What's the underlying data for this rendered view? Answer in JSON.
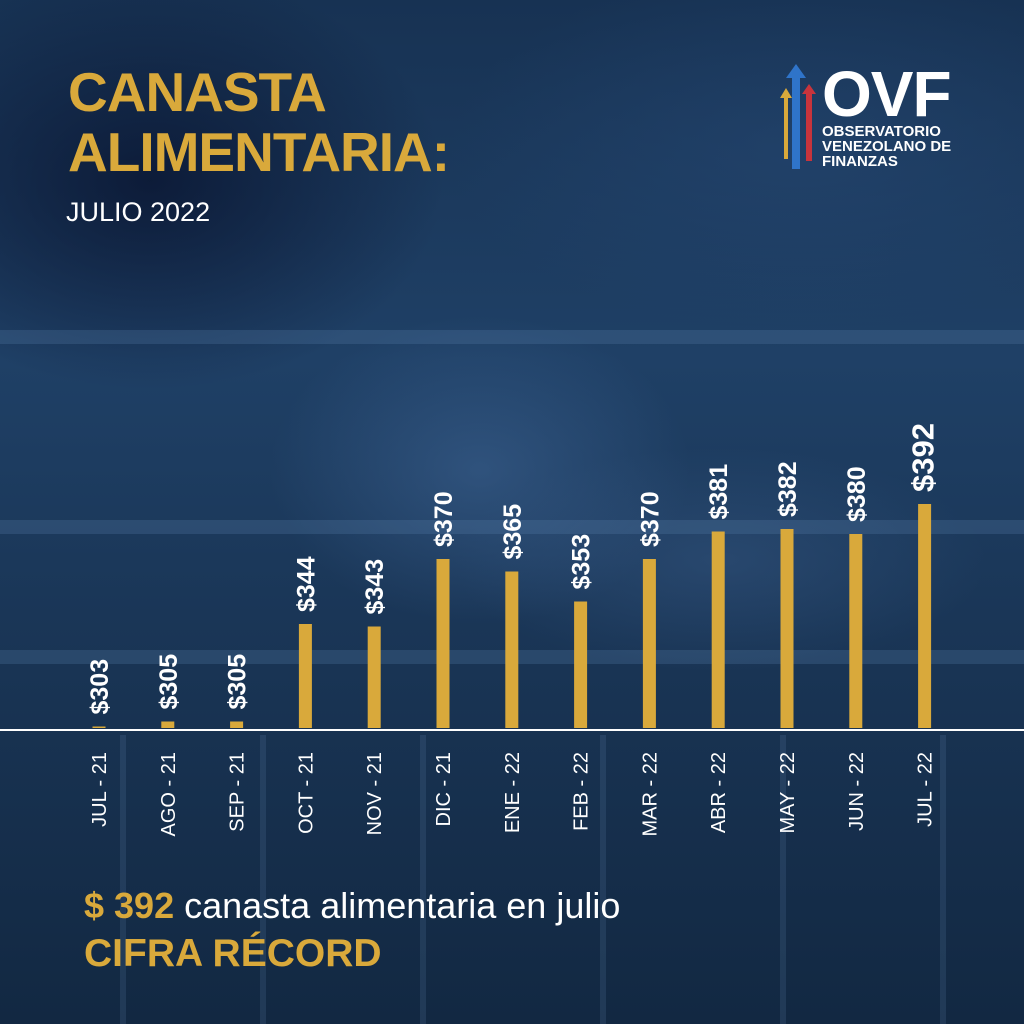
{
  "header": {
    "title_line1": "CANASTA",
    "title_line2": "ALIMENTARIA:",
    "subtitle": "JULIO 2022"
  },
  "logo": {
    "name": "OVF",
    "line1": "OBSERVATORIO",
    "line2": "VENEZOLANO DE",
    "line3": "FINANZAS",
    "icon": "rising-arrows-icon",
    "colors": {
      "blue": "#2f74c9",
      "red": "#c8343c",
      "gold": "#d9a93b"
    }
  },
  "chart_data": {
    "type": "bar",
    "categories": [
      "JUL - 21",
      "AGO - 21",
      "SEP - 21",
      "OCT - 21",
      "NOV - 21",
      "DIC - 21",
      "ENE - 22",
      "FEB - 22",
      "MAR - 22",
      "ABR - 22",
      "MAY - 22",
      "JUN - 22",
      "JUL - 22"
    ],
    "values": [
      303,
      305,
      305,
      344,
      343,
      370,
      365,
      353,
      370,
      381,
      382,
      380,
      392
    ],
    "value_labels": [
      "$303",
      "$305",
      "$305",
      "$344",
      "$343",
      "$370",
      "$365",
      "$353",
      "$370",
      "$381",
      "$382",
      "$380",
      "$392"
    ],
    "ylim": [
      0,
      392
    ],
    "bar_color": "#d9a93b",
    "grid": false,
    "legend": false
  },
  "footer": {
    "amount": "$ 392",
    "text": "canasta alimentaria en julio",
    "highlight": "CIFRA RÉCORD"
  }
}
